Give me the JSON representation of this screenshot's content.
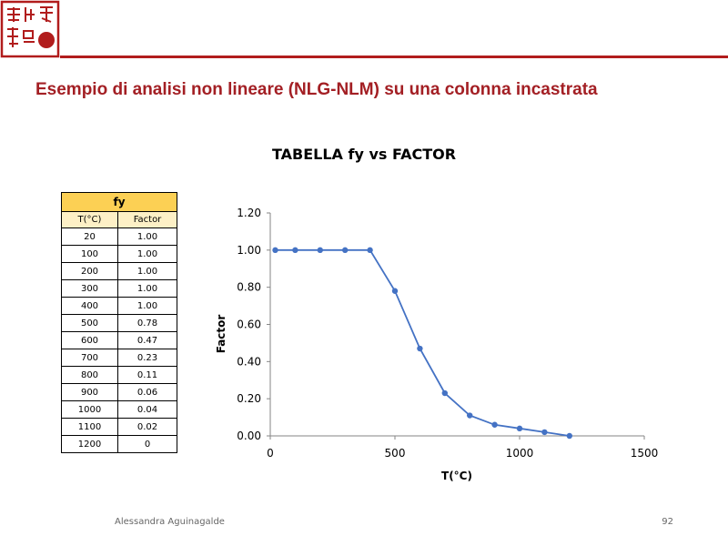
{
  "slide": {
    "title": "Esempio di analisi non lineare (NLG-NLM) su una colonna incastrata",
    "footer_author": "Alessandra Aguinagalde",
    "page_number": "92"
  },
  "colors": {
    "brand_red": "#a31f24",
    "table_header": "#fcd054",
    "table_subheader": "#fdf0c6",
    "series": "#4472c4"
  },
  "table": {
    "title": "fy",
    "columns": [
      "T(°C)",
      "Factor"
    ],
    "rows": [
      [
        "20",
        "1.00"
      ],
      [
        "100",
        "1.00"
      ],
      [
        "200",
        "1.00"
      ],
      [
        "300",
        "1.00"
      ],
      [
        "400",
        "1.00"
      ],
      [
        "500",
        "0.78"
      ],
      [
        "600",
        "0.47"
      ],
      [
        "700",
        "0.23"
      ],
      [
        "800",
        "0.11"
      ],
      [
        "900",
        "0.06"
      ],
      [
        "1000",
        "0.04"
      ],
      [
        "1100",
        "0.02"
      ],
      [
        "1200",
        "0"
      ]
    ]
  },
  "chart_data": {
    "type": "line",
    "title": "TABELLA fy vs FACTOR",
    "xlabel": "T(°C)",
    "ylabel": "Factor",
    "xlim": [
      0,
      1500
    ],
    "ylim": [
      0,
      1.2
    ],
    "x_ticks": [
      "0",
      "500",
      "1000",
      "1500"
    ],
    "y_ticks": [
      "0.00",
      "0.20",
      "0.40",
      "0.60",
      "0.80",
      "1.00",
      "1.20"
    ],
    "grid": false,
    "x": [
      20,
      100,
      200,
      300,
      400,
      500,
      600,
      700,
      800,
      900,
      1000,
      1100,
      1200
    ],
    "series": [
      {
        "values": [
          1.0,
          1.0,
          1.0,
          1.0,
          1.0,
          0.78,
          0.47,
          0.23,
          0.11,
          0.06,
          0.04,
          0.02,
          0
        ]
      }
    ]
  }
}
